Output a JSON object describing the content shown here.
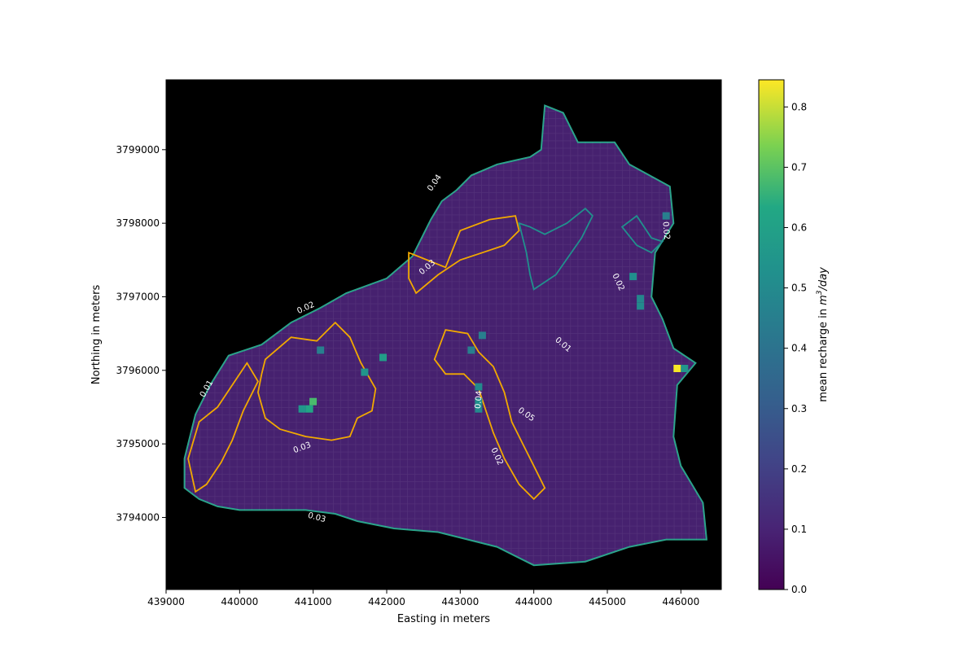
{
  "chart_data": {
    "type": "heatmap",
    "xlabel": "Easting in meters",
    "ylabel": "Northing in meters",
    "xlim": [
      439000,
      446550
    ],
    "ylim": [
      3793020,
      3799950
    ],
    "x_ticks": [
      439000,
      440000,
      441000,
      442000,
      443000,
      444000,
      445000,
      446000
    ],
    "y_ticks": [
      3794000,
      3795000,
      3796000,
      3797000,
      3798000,
      3799000
    ],
    "x_tick_labels": [
      "439000",
      "440000",
      "441000",
      "442000",
      "443000",
      "444000",
      "445000",
      "446000"
    ],
    "y_tick_labels": [
      "3794000",
      "3795000",
      "3796000",
      "3797000",
      "3798000",
      "3799000"
    ],
    "background": "#000000",
    "colormap": "viridis",
    "colorbar": {
      "label": "mean recharge in m³/day",
      "label_prefix": "mean recharge in ",
      "label_unit_base": "m",
      "label_unit_exp": "3",
      "label_unit_suffix": "/day",
      "range": [
        0.0,
        0.845
      ],
      "ticks": [
        0.0,
        0.1,
        0.2,
        0.3,
        0.4,
        0.5,
        0.6,
        0.7,
        0.8
      ],
      "tick_labels": [
        "0.0",
        "0.1",
        "0.2",
        "0.3",
        "0.4",
        "0.5",
        "0.6",
        "0.7",
        "0.8"
      ]
    },
    "domain_boundary": [
      [
        439250,
        3794800
      ],
      [
        439400,
        3795400
      ],
      [
        439600,
        3795800
      ],
      [
        439850,
        3796200
      ],
      [
        440300,
        3796350
      ],
      [
        440700,
        3796650
      ],
      [
        441100,
        3796850
      ],
      [
        441450,
        3797050
      ],
      [
        442000,
        3797250
      ],
      [
        442350,
        3797550
      ],
      [
        442600,
        3798050
      ],
      [
        442750,
        3798300
      ],
      [
        442950,
        3798450
      ],
      [
        443150,
        3798650
      ],
      [
        443500,
        3798800
      ],
      [
        443950,
        3798900
      ],
      [
        444100,
        3799000
      ],
      [
        444150,
        3799600
      ],
      [
        444400,
        3799500
      ],
      [
        444600,
        3799100
      ],
      [
        445100,
        3799100
      ],
      [
        445300,
        3798800
      ],
      [
        445850,
        3798500
      ],
      [
        445900,
        3798000
      ],
      [
        445650,
        3797600
      ],
      [
        445600,
        3797000
      ],
      [
        445750,
        3796700
      ],
      [
        445900,
        3796300
      ],
      [
        446200,
        3796100
      ],
      [
        445950,
        3795800
      ],
      [
        445900,
        3795100
      ],
      [
        446000,
        3794700
      ],
      [
        446300,
        3794200
      ],
      [
        446350,
        3793700
      ],
      [
        445800,
        3793700
      ],
      [
        445300,
        3793600
      ],
      [
        444700,
        3793400
      ],
      [
        444000,
        3793350
      ],
      [
        443500,
        3793600
      ],
      [
        442700,
        3793800
      ],
      [
        442100,
        3793850
      ],
      [
        441600,
        3793950
      ],
      [
        441300,
        3794050
      ],
      [
        440900,
        3794100
      ],
      [
        440400,
        3794100
      ],
      [
        440000,
        3794100
      ],
      [
        439700,
        3794150
      ],
      [
        439450,
        3794250
      ],
      [
        439250,
        3794400
      ]
    ],
    "contour_levels": [
      0.01,
      0.02,
      0.03,
      0.04
    ],
    "contour_labels": [
      {
        "text": "0.04",
        "x": 442650,
        "y": 3798550,
        "angle": -55
      },
      {
        "text": "0.03",
        "x": 442550,
        "y": 3797400,
        "angle": -40
      },
      {
        "text": "0.02",
        "x": 440900,
        "y": 3796850,
        "angle": -25
      },
      {
        "text": "0.01",
        "x": 439550,
        "y": 3795750,
        "angle": -60
      },
      {
        "text": "0.03",
        "x": 440850,
        "y": 3794950,
        "angle": -20
      },
      {
        "text": "0.03",
        "x": 441050,
        "y": 3794000,
        "angle": 15
      },
      {
        "text": "0.04",
        "x": 443250,
        "y": 3795600,
        "angle": -85
      },
      {
        "text": "0.05",
        "x": 443900,
        "y": 3795400,
        "angle": 35
      },
      {
        "text": "0.02",
        "x": 443500,
        "y": 3794830,
        "angle": 65
      },
      {
        "text": "0.01",
        "x": 444400,
        "y": 3796350,
        "angle": 40
      },
      {
        "text": "0.02",
        "x": 445150,
        "y": 3797200,
        "angle": 65
      },
      {
        "text": "0.02",
        "x": 445800,
        "y": 3797900,
        "angle": 85
      }
    ],
    "hotspot_cells": [
      {
        "x": 445950,
        "y": 3796025,
        "value": 0.84
      },
      {
        "x": 446050,
        "y": 3796025,
        "value": 0.55
      },
      {
        "x": 441000,
        "y": 3795575,
        "value": 0.68
      },
      {
        "x": 440950,
        "y": 3795475,
        "value": 0.62
      },
      {
        "x": 440850,
        "y": 3795475,
        "value": 0.55
      },
      {
        "x": 441950,
        "y": 3796175,
        "value": 0.58
      },
      {
        "x": 443250,
        "y": 3795775,
        "value": 0.5
      },
      {
        "x": 443250,
        "y": 3795575,
        "value": 0.52
      },
      {
        "x": 443250,
        "y": 3795475,
        "value": 0.5
      },
      {
        "x": 443150,
        "y": 3796275,
        "value": 0.45
      },
      {
        "x": 443300,
        "y": 3796475,
        "value": 0.45
      },
      {
        "x": 445350,
        "y": 3797275,
        "value": 0.52
      },
      {
        "x": 445450,
        "y": 3796975,
        "value": 0.48
      },
      {
        "x": 445450,
        "y": 3796875,
        "value": 0.5
      },
      {
        "x": 445800,
        "y": 3798100,
        "value": 0.45
      },
      {
        "x": 441700,
        "y": 3795975,
        "value": 0.55
      },
      {
        "x": 441100,
        "y": 3796275,
        "value": 0.45
      }
    ],
    "contours": [
      {
        "level": 0.02,
        "color": "#21908d",
        "points": [
          [
            443800,
            3798000
          ],
          [
            443900,
            3797600
          ],
          [
            443950,
            3797300
          ],
          [
            444000,
            3797100
          ],
          [
            444300,
            3797300
          ],
          [
            444650,
            3797800
          ],
          [
            444800,
            3798100
          ],
          [
            444700,
            3798200
          ],
          [
            444450,
            3798000
          ],
          [
            444150,
            3797850
          ],
          [
            443950,
            3797950
          ]
        ]
      },
      {
        "level": 0.02,
        "color": "#21908d",
        "points": [
          [
            445200,
            3797950
          ],
          [
            445400,
            3798100
          ],
          [
            445600,
            3797800
          ],
          [
            445750,
            3797750
          ],
          [
            445600,
            3797600
          ],
          [
            445400,
            3797700
          ]
        ]
      },
      {
        "level": 0.04,
        "color": "#f2a900",
        "points": [
          [
            442300,
            3797600
          ],
          [
            442800,
            3797400
          ],
          [
            443000,
            3797900
          ],
          [
            443400,
            3798050
          ],
          [
            443750,
            3798100
          ],
          [
            443800,
            3797900
          ],
          [
            443600,
            3797700
          ],
          [
            443300,
            3797600
          ],
          [
            443000,
            3797500
          ],
          [
            442700,
            3797300
          ],
          [
            442400,
            3797050
          ],
          [
            442300,
            3797250
          ]
        ]
      },
      {
        "level": 0.04,
        "color": "#f2a900",
        "points": [
          [
            440350,
            3796150
          ],
          [
            440700,
            3796450
          ],
          [
            441050,
            3796400
          ],
          [
            441300,
            3796650
          ],
          [
            441500,
            3796450
          ],
          [
            441650,
            3796100
          ],
          [
            441850,
            3795750
          ],
          [
            441800,
            3795450
          ],
          [
            441600,
            3795350
          ],
          [
            441500,
            3795100
          ],
          [
            441250,
            3795050
          ],
          [
            440900,
            3795100
          ],
          [
            440550,
            3795200
          ],
          [
            440350,
            3795350
          ],
          [
            440250,
            3795700
          ],
          [
            440300,
            3795950
          ]
        ]
      },
      {
        "level": 0.04,
        "color": "#f2a900",
        "points": [
          [
            439300,
            3794800
          ],
          [
            439450,
            3795300
          ],
          [
            439700,
            3795500
          ],
          [
            439900,
            3795800
          ],
          [
            440100,
            3796100
          ],
          [
            440250,
            3795850
          ],
          [
            440050,
            3795450
          ],
          [
            439900,
            3795050
          ],
          [
            439750,
            3794750
          ],
          [
            439550,
            3794450
          ],
          [
            439400,
            3794350
          ]
        ]
      },
      {
        "level": 0.04,
        "color": "#f2a900",
        "points": [
          [
            442650,
            3796150
          ],
          [
            442800,
            3796550
          ],
          [
            443100,
            3796500
          ],
          [
            443250,
            3796250
          ],
          [
            443450,
            3796050
          ],
          [
            443600,
            3795700
          ],
          [
            443700,
            3795300
          ],
          [
            443850,
            3795000
          ],
          [
            444000,
            3794700
          ],
          [
            444150,
            3794400
          ],
          [
            444000,
            3794250
          ],
          [
            443800,
            3794450
          ],
          [
            443600,
            3794800
          ],
          [
            443450,
            3795150
          ],
          [
            443350,
            3795450
          ],
          [
            443250,
            3795750
          ],
          [
            443050,
            3795950
          ],
          [
            442800,
            3795950
          ]
        ]
      }
    ]
  }
}
